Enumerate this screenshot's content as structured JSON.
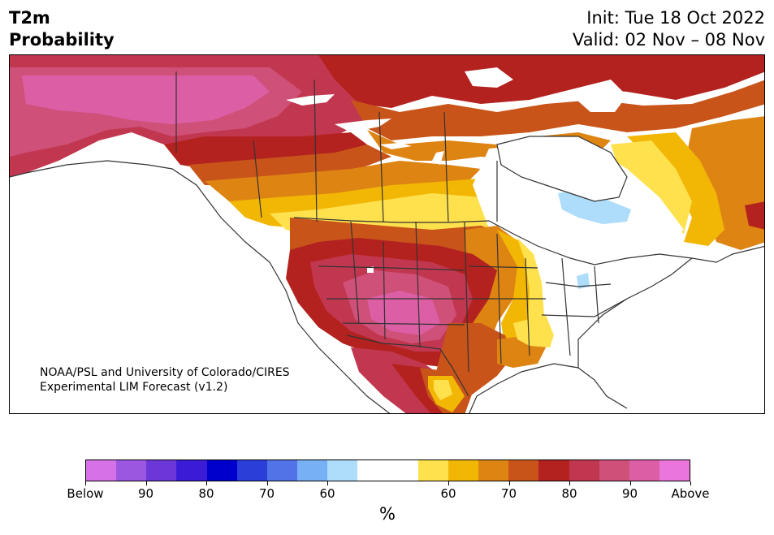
{
  "header": {
    "variable": "T2m",
    "product": "Probability",
    "init": "Init: Tue 18 Oct 2022",
    "valid": "Valid: 02 Nov – 08 Nov"
  },
  "credit": {
    "line1": "NOAA/PSL and University of Colorado/CIRES",
    "line2": "Experimental LIM Forecast (v1.2)"
  },
  "colorbar": {
    "unit": "%",
    "colors": [
      "#d672e8",
      "#9b57e0",
      "#6c37d8",
      "#3b1bd6",
      "#0000cd",
      "#2b3ed8",
      "#5273e8",
      "#78b0f5",
      "#aedcfb",
      "#ffffff",
      "#ffffff",
      "#ffe14d",
      "#f2b705",
      "#de8413",
      "#c8541a",
      "#b3221f",
      "#c23750",
      "#cf5078",
      "#dc5fa5",
      "#ea76dc"
    ],
    "tick_labels": [
      "Below",
      "90",
      "80",
      "70",
      "60",
      "60",
      "70",
      "80",
      "90",
      "Above"
    ]
  },
  "map_colors": {
    "above_60": "#ffe14d",
    "above_65": "#f2b705",
    "above_70": "#de8413",
    "above_75": "#c8541a",
    "above_80": "#b3221f",
    "above_85": "#c23750",
    "above_90": "#cf5078",
    "above_95": "#dc5fa5",
    "below_60": "#aedcfb",
    "below_65": "#78b0f5",
    "neutral": "#ffffff"
  }
}
